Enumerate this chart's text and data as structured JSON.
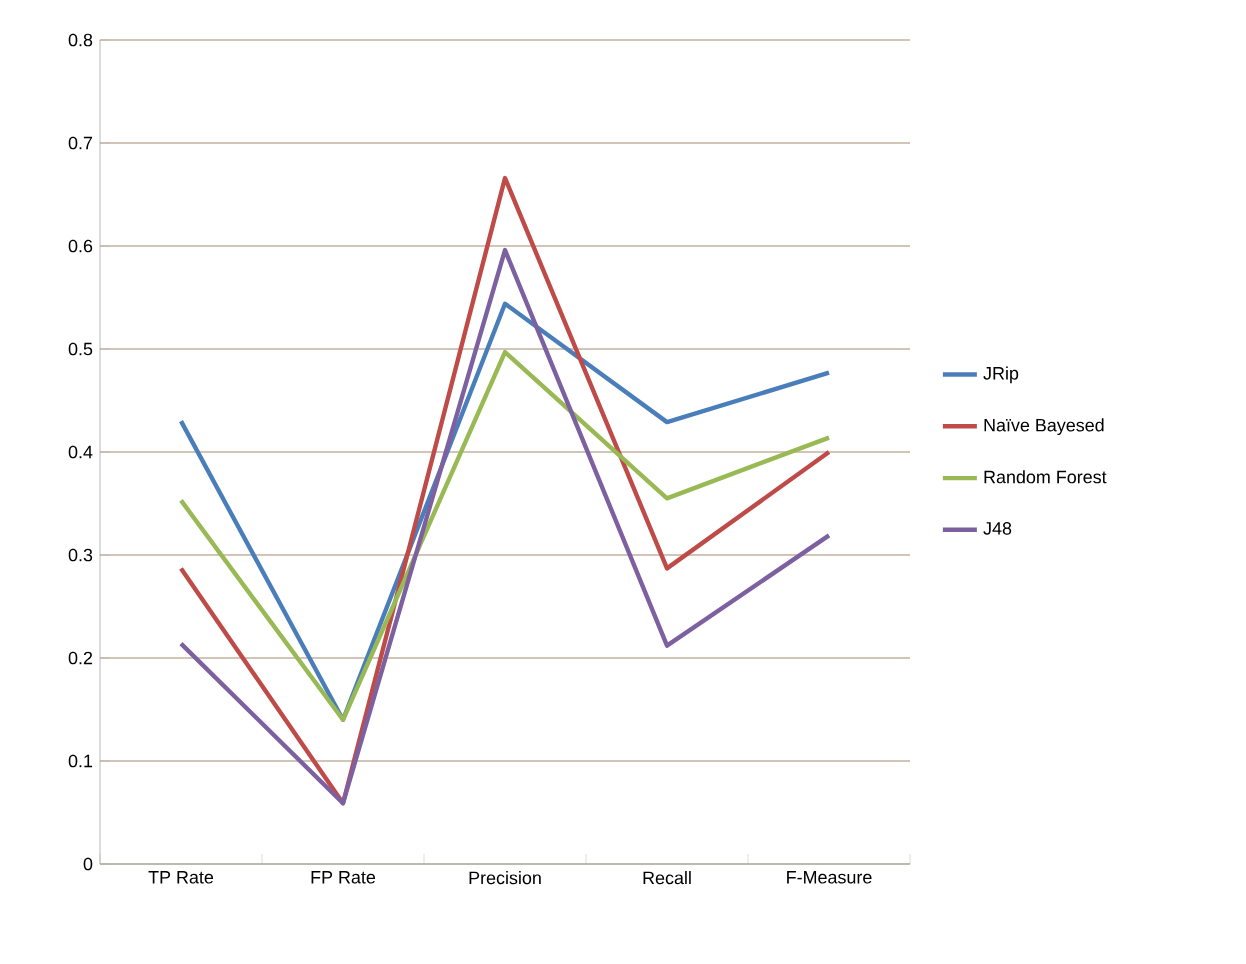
{
  "chart_data": {
    "type": "line",
    "categories": [
      "TP Rate",
      "FP Rate",
      "Precision",
      "Recall",
      "F-Measure"
    ],
    "series": [
      {
        "name": "JRip",
        "color": "#4a7ebb",
        "values": [
          0.43,
          0.14,
          0.544,
          0.429,
          0.477
        ]
      },
      {
        "name": "Naïve Bayesed",
        "color": "#be4b48",
        "values": [
          0.287,
          0.059,
          0.666,
          0.287,
          0.4
        ]
      },
      {
        "name": "Random Forest",
        "color": "#98b954",
        "values": [
          0.353,
          0.14,
          0.497,
          0.355,
          0.414
        ]
      },
      {
        "name": "J48",
        "color": "#7d60a0",
        "values": [
          0.214,
          0.059,
          0.596,
          0.212,
          0.319
        ]
      }
    ],
    "ylim": [
      0,
      0.8
    ],
    "yticks": [
      0,
      0.1,
      0.2,
      0.3,
      0.4,
      0.5,
      0.6,
      0.7,
      0.8
    ],
    "grid": "y",
    "legend": "right",
    "marker": "none",
    "line_style": "solid"
  }
}
